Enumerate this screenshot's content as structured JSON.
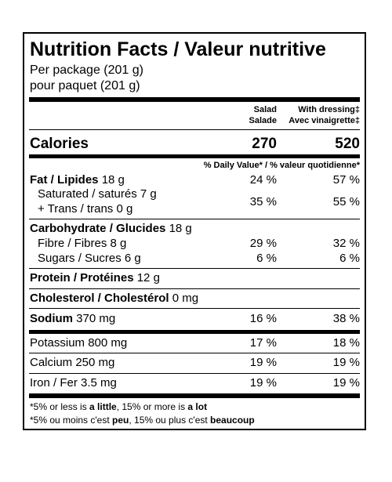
{
  "title": "Nutrition Facts / Valeur nutritive",
  "serving": {
    "line1": "Per package (201 g)",
    "line2": "pour paquet (201 g)"
  },
  "columns": {
    "salad": [
      "Salad",
      "Salade"
    ],
    "dressing": [
      "With dressing‡",
      "Avec vinaigrette‡"
    ]
  },
  "calories": {
    "label": "Calories",
    "salad": "270",
    "dressing": "520"
  },
  "dv_header": "% Daily Value* / % valeur quotidienne*",
  "rows": {
    "fat": {
      "label": "Fat / Lipides",
      "amount": "18 g",
      "salad": "24 %",
      "dressing": "57 %"
    },
    "saturated": {
      "label": "Saturated / saturés 7 g",
      "label2": "+ Trans / trans 0 g",
      "salad": "35 %",
      "dressing": "55 %"
    },
    "carb": {
      "label": "Carbohydrate / Glucides",
      "amount": "18 g"
    },
    "fibre": {
      "label": "Fibre / Fibres 8 g",
      "salad": "29 %",
      "dressing": "32 %"
    },
    "sugars": {
      "label": "Sugars / Sucres 6 g",
      "salad": "6 %",
      "dressing": "6 %"
    },
    "protein": {
      "label": "Protein / Protéines",
      "amount": "12 g"
    },
    "cholesterol": {
      "label": "Cholesterol / Cholestérol",
      "amount": "0 mg"
    },
    "sodium": {
      "label": "Sodium",
      "amount": "370 mg",
      "salad": "16 %",
      "dressing": "38 %"
    },
    "potassium": {
      "label": "Potassium 800 mg",
      "salad": "17 %",
      "dressing": "18 %"
    },
    "calcium": {
      "label": "Calcium 250 mg",
      "salad": "19 %",
      "dressing": "19 %"
    },
    "iron": {
      "label": "Iron / Fer 3.5 mg",
      "salad": "19 %",
      "dressing": "19 %"
    }
  },
  "footnote": {
    "en": {
      "a": "*5% or less is ",
      "b": "a little",
      "c": ", 15% or more is ",
      "d": "a lot"
    },
    "fr": {
      "a": "*5% ou moins c'est ",
      "b": "peu",
      "c": ", 15% ou plus c'est ",
      "d": "beaucoup"
    }
  }
}
